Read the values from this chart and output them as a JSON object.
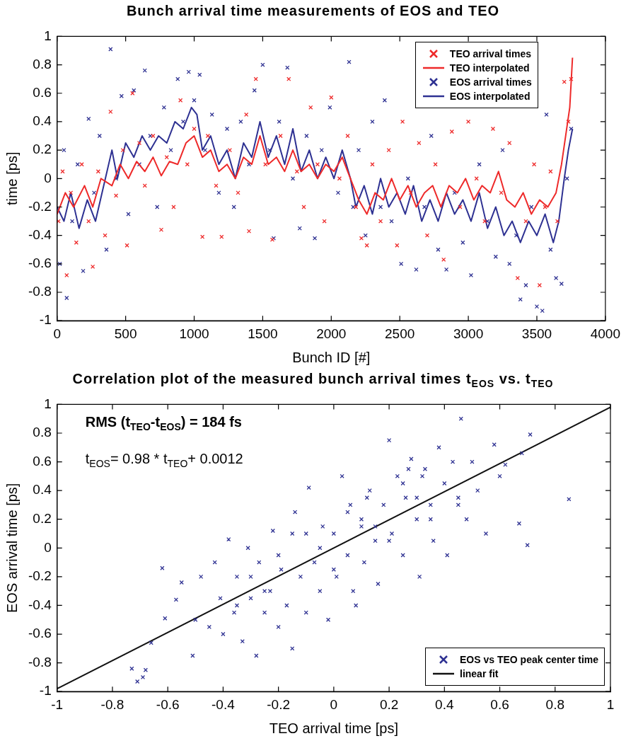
{
  "chart_data": [
    {
      "type": "scatter",
      "title": "Bunch arrival time measurements of EOS and TEO",
      "xlabel": "Bunch ID [#]",
      "ylabel": "time [ps]",
      "xlim": [
        0,
        4000
      ],
      "xticks": [
        0,
        500,
        1000,
        1500,
        2000,
        2500,
        3000,
        3500,
        4000
      ],
      "ylim": [
        -1,
        1
      ],
      "yticks": [
        -1,
        -0.8,
        -0.6,
        -0.4,
        -0.2,
        0,
        0.2,
        0.4,
        0.6,
        0.8,
        1
      ],
      "grid": false,
      "legend": "top right",
      "series": [
        {
          "name": "TEO arrival times",
          "type": "scatter",
          "marker": "cross",
          "color": "#ee2a2a",
          "x": [
            10,
            40,
            70,
            100,
            140,
            180,
            230,
            260,
            300,
            350,
            390,
            430,
            480,
            510,
            550,
            600,
            640,
            700,
            760,
            800,
            850,
            900,
            950,
            1000,
            1060,
            1100,
            1160,
            1200,
            1260,
            1320,
            1380,
            1400,
            1450,
            1520,
            1570,
            1630,
            1690,
            1750,
            1800,
            1850,
            1900,
            1950,
            2000,
            2060,
            2120,
            2180,
            2220,
            2260,
            2300,
            2360,
            2420,
            2480,
            2520,
            2580,
            2640,
            2700,
            2760,
            2820,
            2880,
            2940,
            3000,
            3060,
            3120,
            3180,
            3240,
            3300,
            3360,
            3420,
            3480,
            3520,
            3560,
            3600,
            3650,
            3700,
            3730,
            3750
          ],
          "values": [
            -0.3,
            0.05,
            -0.68,
            -0.1,
            -0.45,
            0.1,
            -0.3,
            -0.62,
            0.05,
            -0.4,
            0.47,
            -0.12,
            0.2,
            -0.47,
            0.6,
            0.25,
            -0.05,
            0.3,
            -0.36,
            0.15,
            -0.2,
            0.55,
            0.1,
            0.35,
            -0.41,
            0.3,
            -0.05,
            -0.41,
            0.2,
            -0.1,
            0.45,
            -0.37,
            0.7,
            0.1,
            -0.43,
            0.3,
            0.7,
            0.05,
            -0.2,
            0.5,
            0.1,
            -0.3,
            0.57,
            0,
            0.3,
            -0.2,
            -0.42,
            -0.47,
            0.1,
            -0.3,
            0.2,
            -0.47,
            0.4,
            -0.1,
            0.25,
            -0.4,
            0.1,
            -0.57,
            0.33,
            -0.2,
            0.4,
            0,
            -0.3,
            0.35,
            -0.1,
            0.25,
            -0.7,
            -0.3,
            0.1,
            -0.75,
            -0.2,
            0.05,
            -0.3,
            0.68,
            0.4,
            0.7
          ]
        },
        {
          "name": "TEO interpolated",
          "type": "line",
          "marker": "none",
          "color": "#ee2a2a",
          "x": [
            0,
            60,
            120,
            200,
            260,
            320,
            400,
            460,
            520,
            580,
            640,
            700,
            760,
            820,
            880,
            940,
            1000,
            1060,
            1120,
            1180,
            1240,
            1300,
            1360,
            1420,
            1480,
            1540,
            1600,
            1660,
            1720,
            1780,
            1840,
            1900,
            1960,
            2020,
            2080,
            2140,
            2200,
            2260,
            2320,
            2380,
            2440,
            2500,
            2560,
            2620,
            2680,
            2740,
            2800,
            2860,
            2920,
            2980,
            3040,
            3100,
            3160,
            3220,
            3280,
            3340,
            3400,
            3460,
            3520,
            3580,
            3640,
            3680,
            3710,
            3740,
            3760
          ],
          "values": [
            -0.25,
            -0.1,
            -0.2,
            -0.05,
            -0.2,
            0,
            -0.05,
            0.1,
            0,
            0.12,
            0.05,
            0.15,
            0.02,
            0.12,
            0.1,
            0.25,
            0.3,
            0.15,
            0.2,
            0.05,
            0.1,
            0,
            0.15,
            0.1,
            0.3,
            0.1,
            0.15,
            0.05,
            0.2,
            0.05,
            0.1,
            0,
            0.1,
            0.05,
            0.15,
            0,
            -0.15,
            -0.25,
            -0.1,
            -0.15,
            0,
            -0.15,
            -0.05,
            -0.2,
            -0.1,
            -0.05,
            -0.2,
            -0.05,
            -0.1,
            0,
            -0.15,
            -0.05,
            -0.1,
            0.05,
            -0.15,
            -0.2,
            -0.1,
            -0.25,
            -0.15,
            -0.2,
            -0.1,
            0.1,
            0.3,
            0.5,
            0.85
          ]
        },
        {
          "name": "EOS arrival times",
          "type": "scatter",
          "marker": "cross",
          "color": "#2e3192",
          "x": [
            20,
            50,
            70,
            110,
            150,
            190,
            230,
            270,
            310,
            360,
            390,
            430,
            470,
            520,
            560,
            600,
            640,
            680,
            730,
            780,
            830,
            880,
            920,
            960,
            1000,
            1040,
            1080,
            1130,
            1180,
            1240,
            1290,
            1340,
            1400,
            1440,
            1500,
            1550,
            1580,
            1620,
            1680,
            1720,
            1770,
            1820,
            1880,
            1930,
            1990,
            2050,
            2130,
            2160,
            2200,
            2250,
            2300,
            2360,
            2390,
            2440,
            2510,
            2560,
            2620,
            2680,
            2730,
            2780,
            2840,
            2900,
            2960,
            3020,
            3080,
            3140,
            3200,
            3250,
            3300,
            3350,
            3380,
            3420,
            3460,
            3500,
            3540,
            3570,
            3600,
            3640,
            3680,
            3720,
            3750
          ],
          "values": [
            -0.6,
            0.2,
            -0.84,
            -0.3,
            0.1,
            -0.65,
            0.42,
            -0.1,
            0.3,
            -0.5,
            0.91,
            0,
            0.58,
            -0.25,
            0.62,
            0.1,
            0.76,
            0.3,
            -0.2,
            0.5,
            0.2,
            0.7,
            0.4,
            0.75,
            0.55,
            0.73,
            0.2,
            0.45,
            -0.1,
            0.35,
            -0.2,
            0.4,
            0.1,
            0.62,
            0.8,
            0.2,
            -0.42,
            0.4,
            0.78,
            0,
            -0.35,
            0.3,
            -0.42,
            0.2,
            0.5,
            -0.1,
            0.82,
            -0.2,
            0.2,
            -0.4,
            0.4,
            -0.2,
            0.55,
            -0.3,
            -0.6,
            0,
            -0.64,
            -0.2,
            0.3,
            -0.5,
            -0.64,
            -0.1,
            -0.45,
            -0.68,
            0.1,
            -0.3,
            -0.55,
            0.2,
            -0.6,
            -0.4,
            -0.85,
            -0.75,
            -0.2,
            -0.9,
            -0.93,
            0.45,
            -0.5,
            -0.7,
            -0.74,
            0,
            0.35
          ]
        },
        {
          "name": "EOS interpolated",
          "type": "line",
          "marker": "none",
          "color": "#2e3192",
          "x": [
            0,
            50,
            100,
            160,
            220,
            280,
            340,
            400,
            440,
            500,
            560,
            620,
            680,
            740,
            800,
            860,
            920,
            980,
            1020,
            1060,
            1120,
            1180,
            1240,
            1300,
            1360,
            1420,
            1480,
            1540,
            1600,
            1660,
            1720,
            1780,
            1840,
            1900,
            1960,
            2020,
            2080,
            2140,
            2180,
            2240,
            2300,
            2360,
            2420,
            2480,
            2540,
            2600,
            2660,
            2720,
            2780,
            2840,
            2900,
            2960,
            3020,
            3080,
            3140,
            3200,
            3260,
            3320,
            3380,
            3440,
            3500,
            3560,
            3620,
            3660,
            3700,
            3730,
            3760
          ],
          "values": [
            -0.2,
            -0.3,
            -0.1,
            -0.35,
            -0.15,
            -0.3,
            -0.05,
            0.2,
            0,
            0.25,
            0.15,
            0.3,
            0.2,
            0.3,
            0.25,
            0.4,
            0.35,
            0.5,
            0.45,
            0.2,
            0.3,
            0.1,
            0.2,
            0,
            0.25,
            0.15,
            0.4,
            0.15,
            0.3,
            0.1,
            0.35,
            0.05,
            0.2,
            0,
            0.15,
            0,
            0.2,
            0,
            -0.2,
            -0.05,
            -0.25,
            0,
            -0.2,
            -0.1,
            -0.25,
            -0.05,
            -0.3,
            -0.15,
            -0.3,
            -0.1,
            -0.25,
            -0.15,
            -0.3,
            -0.1,
            -0.35,
            -0.2,
            -0.4,
            -0.3,
            -0.45,
            -0.3,
            -0.4,
            -0.25,
            -0.45,
            -0.3,
            0,
            0.2,
            0.35
          ]
        }
      ]
    },
    {
      "type": "scatter",
      "title": "Correlation plot of the measured bunch arrival times t$_{EOS}$ vs. t$_{TEO}$",
      "xlabel": "TEO arrival time [ps]",
      "ylabel": "EOS arrival time [ps]",
      "xlim": [
        -1,
        1
      ],
      "xticks": [
        -1,
        -0.8,
        -0.6,
        -0.4,
        -0.2,
        0,
        0.2,
        0.4,
        0.6,
        0.8,
        1
      ],
      "ylim": [
        -1,
        1
      ],
      "yticks": [
        -1,
        -0.8,
        -0.6,
        -0.4,
        -0.2,
        0,
        0.2,
        0.4,
        0.6,
        0.8,
        1
      ],
      "grid": false,
      "legend": "bottom right",
      "annotations": [
        "RMS (t$_{TEO}$-t$_{EOS}$) = 184 fs",
        "t$_{EOS}$= 0.98 * t$_{TEO}$+ 0.0012"
      ],
      "series": [
        {
          "name": "EOS vs TEO peak center time",
          "type": "scatter",
          "marker": "cross",
          "color": "#2e3192",
          "x": [
            -0.73,
            -0.71,
            -0.69,
            -0.68,
            -0.66,
            -0.62,
            -0.61,
            -0.57,
            -0.55,
            -0.51,
            -0.5,
            -0.48,
            -0.45,
            -0.43,
            -0.41,
            -0.4,
            -0.38,
            -0.36,
            -0.35,
            -0.33,
            -0.31,
            -0.3,
            -0.28,
            -0.27,
            -0.25,
            -0.23,
            -0.22,
            -0.2,
            -0.19,
            -0.17,
            -0.15,
            -0.14,
            -0.12,
            -0.1,
            -0.09,
            -0.07,
            -0.05,
            -0.04,
            -0.02,
            0,
            0.01,
            0.03,
            0.05,
            0.06,
            0.08,
            0.1,
            0.11,
            0.13,
            0.15,
            0.16,
            0.18,
            0.2,
            0.21,
            0.23,
            0.25,
            0.26,
            0.28,
            0.3,
            0.31,
            0.33,
            0.35,
            0.36,
            0.38,
            0.4,
            0.41,
            0.43,
            0.45,
            0.46,
            0.48,
            0.5,
            0.52,
            0.55,
            0.58,
            0.6,
            0.62,
            0.67,
            0.68,
            0.7,
            0.71,
            0.85,
            -0.3,
            -0.2,
            -0.1,
            0,
            0.1,
            0.2,
            0.3,
            -0.25,
            -0.05,
            0.05,
            0.15,
            0.25,
            0.35,
            -0.15,
            0.12,
            0.45,
            0.32,
            -0.35,
            0.27,
            0.07
          ],
          "values": [
            -0.84,
            -0.93,
            -0.9,
            -0.85,
            -0.66,
            -0.14,
            -0.49,
            -0.36,
            -0.24,
            -0.75,
            -0.5,
            -0.2,
            -0.55,
            -0.1,
            -0.35,
            -0.6,
            0.06,
            -0.45,
            -0.2,
            -0.65,
            0.0,
            -0.35,
            -0.75,
            -0.1,
            -0.45,
            -0.3,
            0.12,
            -0.55,
            -0.15,
            -0.4,
            -0.7,
            0.25,
            -0.2,
            -0.45,
            0.42,
            -0.1,
            -0.3,
            0.15,
            -0.5,
            0.1,
            -0.2,
            0.5,
            -0.05,
            0.3,
            -0.4,
            0.15,
            -0.1,
            0.4,
            0.05,
            -0.25,
            0.3,
            0.75,
            0.1,
            0.5,
            -0.05,
            0.35,
            0.62,
            0.2,
            -0.2,
            0.55,
            0.3,
            0.05,
            0.7,
            0.45,
            -0.05,
            0.6,
            0.35,
            0.9,
            0.2,
            0.6,
            0.4,
            0.1,
            0.72,
            0.5,
            0.58,
            0.17,
            0.66,
            0.02,
            0.79,
            0.34,
            -0.2,
            -0.05,
            0.1,
            -0.15,
            0.2,
            0.05,
            0.35,
            -0.3,
            0.0,
            0.25,
            0.15,
            0.45,
            0.2,
            0.1,
            0.35,
            0.3,
            0.5,
            -0.4,
            0.55,
            -0.3
          ]
        },
        {
          "name": "linear fit",
          "type": "line",
          "marker": "none",
          "color": "#111111",
          "x": [
            -1,
            1
          ],
          "values": [
            -0.98,
            0.98
          ]
        }
      ]
    }
  ]
}
